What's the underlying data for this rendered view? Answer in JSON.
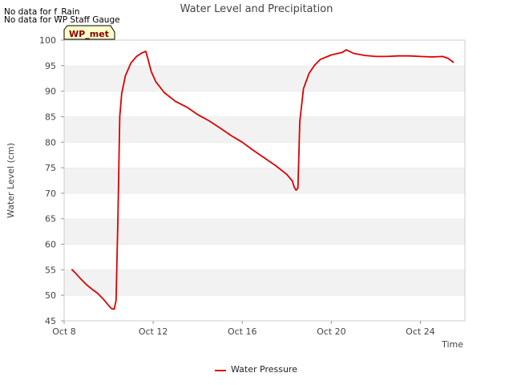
{
  "notices": [
    "No data for f_Rain",
    "No data for WP Staff Gauge"
  ],
  "site_tag": "WP_met",
  "chart_data": {
    "type": "line",
    "title": "Water Level and Precipitation",
    "xlabel": "Time",
    "ylabel": "Water Level (cm)",
    "ylim": [
      45,
      100
    ],
    "xlim": [
      "2025-10-08",
      "2025-10-26"
    ],
    "x_ticks": [
      "Oct 8",
      "Oct 12",
      "Oct 16",
      "Oct 20",
      "Oct 24"
    ],
    "y_ticks": [
      45,
      50,
      55,
      60,
      65,
      70,
      75,
      80,
      85,
      90,
      95,
      100
    ],
    "grid": "alternating horizontal bands",
    "legend_position": "bottom-center",
    "series": [
      {
        "name": "Water Pressure",
        "color": "#dd0000",
        "x": [
          "2025-10-08 08:00",
          "2025-10-08 12:00",
          "2025-10-08 18:00",
          "2025-10-09 00:00",
          "2025-10-09 06:00",
          "2025-10-09 12:00",
          "2025-10-09 18:00",
          "2025-10-10 00:00",
          "2025-10-10 03:00",
          "2025-10-10 06:00",
          "2025-10-10 08:00",
          "2025-10-10 10:00",
          "2025-10-10 12:00",
          "2025-10-10 14:00",
          "2025-10-10 18:00",
          "2025-10-11 00:00",
          "2025-10-11 06:00",
          "2025-10-11 12:00",
          "2025-10-11 16:00",
          "2025-10-11 18:00",
          "2025-10-11 22:00",
          "2025-10-12 03:00",
          "2025-10-12 12:00",
          "2025-10-13 00:00",
          "2025-10-13 12:00",
          "2025-10-14 00:00",
          "2025-10-14 12:00",
          "2025-10-15 00:00",
          "2025-10-15 12:00",
          "2025-10-16 00:00",
          "2025-10-16 12:00",
          "2025-10-17 00:00",
          "2025-10-17 12:00",
          "2025-10-18 00:00",
          "2025-10-18 06:00",
          "2025-10-18 08:00",
          "2025-10-18 10:00",
          "2025-10-18 12:00",
          "2025-10-18 14:00",
          "2025-10-18 18:00",
          "2025-10-19 00:00",
          "2025-10-19 06:00",
          "2025-10-19 12:00",
          "2025-10-20 00:00",
          "2025-10-20 12:00",
          "2025-10-20 16:00",
          "2025-10-21 00:00",
          "2025-10-21 12:00",
          "2025-10-22 00:00",
          "2025-10-22 12:00",
          "2025-10-23 00:00",
          "2025-10-23 12:00",
          "2025-10-24 00:00",
          "2025-10-24 12:00",
          "2025-10-25 00:00",
          "2025-10-25 06:00",
          "2025-10-25 12:00"
        ],
        "values": [
          55.1,
          54.4,
          53.2,
          52.1,
          51.2,
          50.4,
          49.3,
          48.0,
          47.4,
          47.3,
          49.0,
          65.0,
          85.0,
          89.5,
          93.0,
          95.5,
          96.8,
          97.5,
          97.8,
          96.5,
          93.8,
          91.8,
          89.7,
          88.0,
          86.9,
          85.4,
          84.2,
          82.8,
          81.3,
          80.0,
          78.4,
          76.9,
          75.4,
          73.7,
          72.4,
          71.2,
          70.6,
          71.0,
          84.0,
          90.5,
          93.5,
          95.1,
          96.2,
          97.1,
          97.6,
          98.1,
          97.4,
          97.0,
          96.8,
          96.8,
          96.9,
          96.9,
          96.8,
          96.7,
          96.8,
          96.4,
          95.6
        ]
      }
    ]
  }
}
